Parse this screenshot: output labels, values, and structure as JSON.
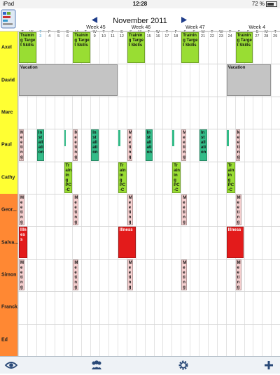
{
  "status": {
    "left": "iPad",
    "time": "12:28",
    "battery": "72 %"
  },
  "header": {
    "month": "November 2011",
    "prev_icon": "triangle-left-icon",
    "next_icon": "triangle-right-icon"
  },
  "weeks": [
    {
      "label": "Week 45",
      "col": 8
    },
    {
      "label": "Week 46",
      "col": 13
    },
    {
      "label": "Week 47",
      "col": 19
    },
    {
      "label": "Week 4",
      "col": 26
    }
  ],
  "days": [
    {
      "l": "T",
      "n": "1"
    },
    {
      "l": "W",
      "n": "2"
    },
    {
      "l": "T",
      "n": "3",
      "today": true
    },
    {
      "l": "F",
      "n": "4"
    },
    {
      "l": "S",
      "n": "5"
    },
    {
      "l": "S",
      "n": "6"
    },
    {
      "l": "M",
      "n": "7"
    },
    {
      "l": "T",
      "n": "8"
    },
    {
      "l": "W",
      "n": "9"
    },
    {
      "l": "T",
      "n": "10"
    },
    {
      "l": "F",
      "n": "11"
    },
    {
      "l": "S",
      "n": "12"
    },
    {
      "l": "S",
      "n": "13"
    },
    {
      "l": "M",
      "n": "14"
    },
    {
      "l": "T",
      "n": "15"
    },
    {
      "l": "W",
      "n": "16"
    },
    {
      "l": "T",
      "n": "17"
    },
    {
      "l": "F",
      "n": "18"
    },
    {
      "l": "S",
      "n": "19"
    },
    {
      "l": "S",
      "n": "20"
    },
    {
      "l": "M",
      "n": "21"
    },
    {
      "l": "T",
      "n": "22"
    },
    {
      "l": "W",
      "n": "23"
    },
    {
      "l": "T",
      "n": "24"
    },
    {
      "l": "F",
      "n": "25"
    },
    {
      "l": "S",
      "n": "26"
    },
    {
      "l": "S",
      "n": "27"
    },
    {
      "l": "M",
      "n": "28"
    },
    {
      "l": "T",
      "n": "29"
    },
    {
      "l": "W",
      "n": "30"
    }
  ],
  "people": [
    {
      "name": "Axel",
      "color": "#ffff33"
    },
    {
      "name": "David",
      "color": "#ffff33"
    },
    {
      "name": "Marc",
      "color": "#ffff33"
    },
    {
      "name": "Paul",
      "color": "#ffff33"
    },
    {
      "name": "Cathy",
      "color": "#ffff33"
    },
    {
      "name": "Geor...",
      "color": "#ff8833"
    },
    {
      "name": "Salva...",
      "color": "#ff8833"
    },
    {
      "name": "Simon",
      "color": "#ff8833"
    },
    {
      "name": "Franck",
      "color": "#ff8833"
    },
    {
      "name": "Ed",
      "color": "#ff8833"
    }
  ],
  "events": [
    {
      "row": 0,
      "start": 0,
      "span": 2,
      "color": "green",
      "text": "Training Target Skills"
    },
    {
      "row": 0,
      "start": 6,
      "span": 2,
      "color": "green",
      "text": "Training Target Skills"
    },
    {
      "row": 0,
      "start": 12,
      "span": 2,
      "color": "green",
      "text": "Training Target Skills"
    },
    {
      "row": 0,
      "start": 18,
      "span": 2,
      "color": "green",
      "text": "Training Target Skills"
    },
    {
      "row": 0,
      "start": 24,
      "span": 2,
      "color": "green",
      "text": "Training Target Skills"
    },
    {
      "row": 1,
      "start": 0,
      "span": 11,
      "color": "gray",
      "text": "Vacation"
    },
    {
      "row": 1,
      "start": 23,
      "span": 5,
      "color": "gray",
      "text": "Vacation"
    },
    {
      "row": 3,
      "start": 0,
      "span": 0.6,
      "color": "pink",
      "text": "Meeting"
    },
    {
      "row": 3,
      "start": 2,
      "span": 0.9,
      "color": "teal",
      "text": "Installation"
    },
    {
      "row": 3,
      "start": 5,
      "span": 0.3,
      "color": "teal",
      "text": ""
    },
    {
      "row": 3,
      "start": 6,
      "span": 0.6,
      "color": "pink",
      "text": "Meeting"
    },
    {
      "row": 3,
      "start": 8,
      "span": 0.9,
      "color": "teal",
      "text": "Installation"
    },
    {
      "row": 3,
      "start": 11,
      "span": 0.3,
      "color": "teal",
      "text": ""
    },
    {
      "row": 3,
      "start": 12,
      "span": 0.6,
      "color": "pink",
      "text": "Meeting"
    },
    {
      "row": 3,
      "start": 14,
      "span": 0.9,
      "color": "teal",
      "text": "Installation"
    },
    {
      "row": 3,
      "start": 17,
      "span": 0.3,
      "color": "teal",
      "text": ""
    },
    {
      "row": 3,
      "start": 18,
      "span": 0.6,
      "color": "pink",
      "text": "Meeting"
    },
    {
      "row": 3,
      "start": 20,
      "span": 0.9,
      "color": "teal",
      "text": "Installation"
    },
    {
      "row": 3,
      "start": 23,
      "span": 0.3,
      "color": "teal",
      "text": ""
    },
    {
      "row": 3,
      "start": 24,
      "span": 0.6,
      "color": "pink",
      "text": "Meeting"
    },
    {
      "row": 4,
      "start": 5,
      "span": 1,
      "color": "green",
      "text": "Training PC-Comp"
    },
    {
      "row": 4,
      "start": 11,
      "span": 1,
      "color": "green",
      "text": "Training PC-Comp"
    },
    {
      "row": 4,
      "start": 17,
      "span": 1,
      "color": "green",
      "text": "Training PC-Comp"
    },
    {
      "row": 4,
      "start": 23,
      "span": 1,
      "color": "green",
      "text": "Training PC-Comp"
    },
    {
      "row": 5,
      "start": 0,
      "span": 0.7,
      "color": "pink",
      "text": "Meeting"
    },
    {
      "row": 5,
      "start": 6,
      "span": 0.7,
      "color": "pink",
      "text": "Meeting"
    },
    {
      "row": 5,
      "start": 12,
      "span": 0.7,
      "color": "pink",
      "text": "Meeting"
    },
    {
      "row": 5,
      "start": 18,
      "span": 0.7,
      "color": "pink",
      "text": "Meeting"
    },
    {
      "row": 5,
      "start": 24,
      "span": 0.7,
      "color": "pink",
      "text": "Meeting"
    },
    {
      "row": 6,
      "start": 0,
      "span": 1,
      "color": "red",
      "text": "Illness"
    },
    {
      "row": 6,
      "start": 11,
      "span": 2,
      "color": "red",
      "text": "Illness"
    },
    {
      "row": 6,
      "start": 23,
      "span": 2,
      "color": "red",
      "text": "Illness"
    },
    {
      "row": 7,
      "start": 0,
      "span": 0.7,
      "color": "pink",
      "text": "Meeting"
    },
    {
      "row": 7,
      "start": 6,
      "span": 0.7,
      "color": "pink",
      "text": "Meeting"
    },
    {
      "row": 7,
      "start": 12,
      "span": 0.7,
      "color": "pink",
      "text": "Meeting"
    },
    {
      "row": 7,
      "start": 18,
      "span": 0.7,
      "color": "pink",
      "text": "Meeting"
    },
    {
      "row": 7,
      "start": 24,
      "span": 0.7,
      "color": "pink",
      "text": "Meeting"
    }
  ],
  "toolbar": [
    {
      "name": "eye-icon"
    },
    {
      "name": "people-icon"
    },
    {
      "name": "gear-icon"
    },
    {
      "name": "plus-icon"
    }
  ]
}
